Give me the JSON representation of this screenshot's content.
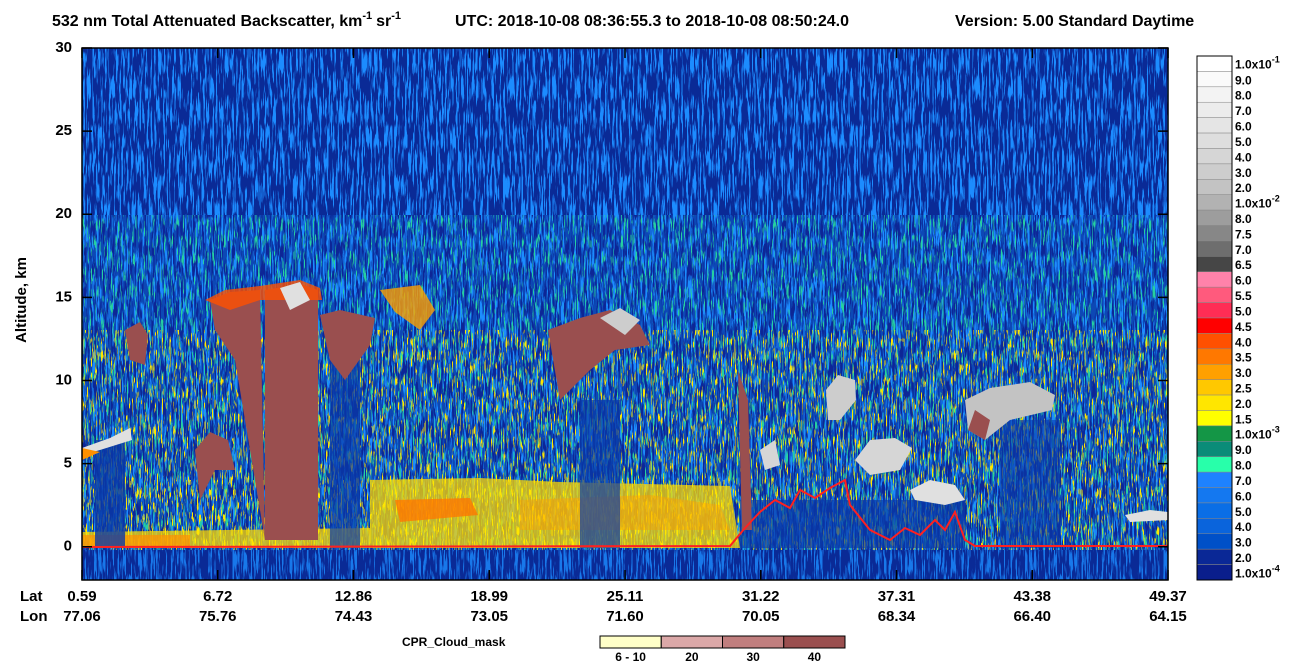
{
  "chart_data": {
    "type": "curtain",
    "title": {
      "text": "532 nm Total Attenuated Backscatter, km",
      "sup1": "-1",
      "unit2": "sr",
      "sup2": "-1",
      "utc": "UTC:  2018-10-08 08:36:55.3  to  2018-10-08 08:50:24.0",
      "version": "Version: 5.00  Standard  Daytime"
    },
    "y_label": "Altitude, km",
    "ylim": [
      -2,
      30
    ],
    "yticks": [
      0,
      5,
      10,
      15,
      20,
      25,
      30
    ],
    "x_rows": [
      {
        "name": "Lat",
        "values": [
          "0.59",
          "6.72",
          "12.86",
          "18.99",
          "25.11",
          "31.22",
          "37.31",
          "43.38",
          "49.37"
        ]
      },
      {
        "name": "Lon",
        "values": [
          "77.06",
          "75.76",
          "74.43",
          "73.05",
          "71.60",
          "70.05",
          "68.34",
          "66.40",
          "64.15"
        ]
      }
    ],
    "colorbar": {
      "labels": [
        {
          "base": "1.0x10",
          "exp": "-1"
        },
        "9.0",
        "8.0",
        "7.0",
        "6.0",
        "5.0",
        "4.0",
        "3.0",
        "2.0",
        {
          "base": "1.0x10",
          "exp": "-2"
        },
        "8.0",
        "7.5",
        "7.0",
        "6.5",
        "6.0",
        "5.5",
        "5.0",
        "4.5",
        "4.0",
        "3.5",
        "3.0",
        "2.5",
        "2.0",
        "1.5",
        {
          "base": "1.0x10",
          "exp": "-3"
        },
        "9.0",
        "8.0",
        "7.0",
        "6.0",
        "5.0",
        "4.0",
        "3.0",
        "2.0",
        {
          "base": "1.0x10",
          "exp": "-4"
        }
      ],
      "colors": [
        "#ffffff",
        "#fafafa",
        "#f3f3f3",
        "#ececec",
        "#e5e5e5",
        "#dedede",
        "#d6d6d6",
        "#cdcdcd",
        "#c3c3c3",
        "#b2b2b2",
        "#9d9d9d",
        "#878787",
        "#6e6e6e",
        "#464646",
        "#ff82aa",
        "#ff5a7d",
        "#ff2d55",
        "#ff0000",
        "#ff5000",
        "#ff7800",
        "#ffa000",
        "#ffc800",
        "#ffe600",
        "#ffff00",
        "#149646",
        "#0a8c78",
        "#28ffaa",
        "#1e82ff",
        "#1478f0",
        "#0a6ee6",
        "#0a64dc",
        "#0050c8",
        "#0a2896",
        "#0a1e8c"
      ]
    },
    "cloud_mask": {
      "title": "CPR_Cloud_mask",
      "labels": [
        "6 - 10",
        "20",
        "30",
        "40"
      ],
      "colors": [
        "#ffffc8",
        "#dba8a8",
        "#c07e7e",
        "#9a4f4f"
      ]
    }
  }
}
